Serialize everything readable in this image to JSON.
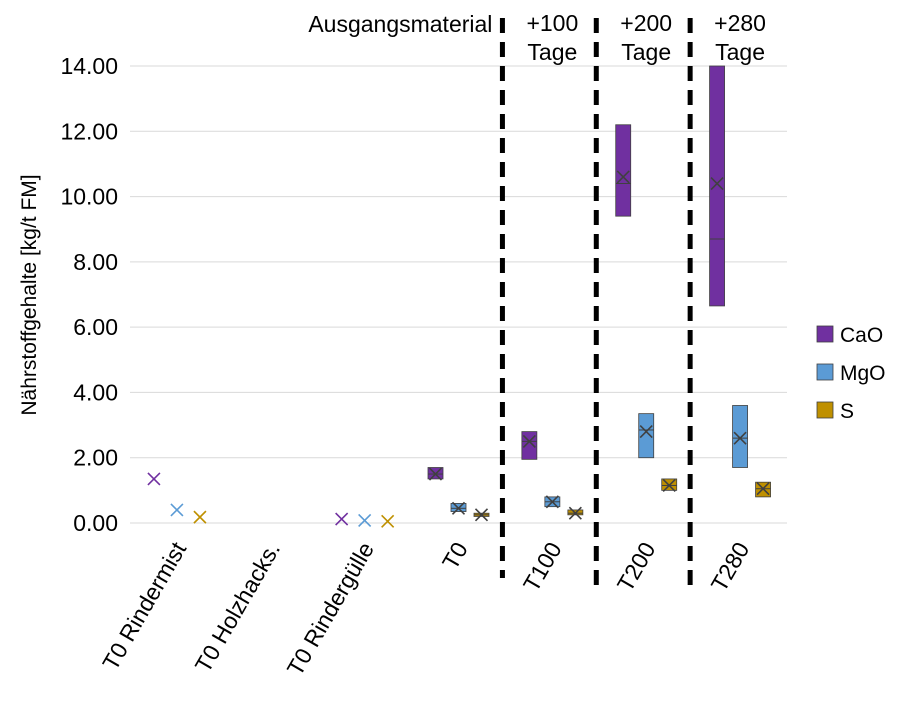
{
  "chart_data": {
    "type": "box",
    "ylabel": "Nährstoffgehalte [kg/t FM]",
    "ylim": [
      0,
      14
    ],
    "yticks": [
      "0.00",
      "2.00",
      "4.00",
      "6.00",
      "8.00",
      "10.00",
      "12.00",
      "14.00"
    ],
    "grid": true,
    "legend_position": "right",
    "categories": [
      "T0 Rindermist",
      "T0 Holzhacks.",
      "T0 Rindergülle",
      "T0",
      "T100",
      "T200",
      "T280"
    ],
    "annotations": [
      {
        "text": "Ausgangsmaterial",
        "category": "T0"
      },
      {
        "text": "+100",
        "text2": "Tage",
        "category": "T100"
      },
      {
        "text": "+200",
        "text2": "Tage",
        "category": "T200"
      },
      {
        "text": "+280",
        "text2": "Tage",
        "category": "T280"
      }
    ],
    "series": [
      {
        "name": "CaO",
        "color": "#7030A0",
        "boxes": [
          {
            "category": "T0 Rindermist",
            "min": 1.35,
            "q1": 1.35,
            "median": 1.35,
            "q3": 1.35,
            "max": 1.35,
            "mean": 1.35
          },
          {
            "category": "T0 Holzhacks.",
            "min": null,
            "q1": null,
            "median": null,
            "q3": null,
            "max": null,
            "mean": null
          },
          {
            "category": "T0 Rindergülle",
            "min": 0.12,
            "q1": 0.12,
            "median": 0.12,
            "q3": 0.12,
            "max": 0.12,
            "mean": 0.12
          },
          {
            "category": "T0",
            "min": 1.35,
            "q1": 1.35,
            "median": 1.5,
            "q3": 1.7,
            "max": 1.7,
            "mean": 1.5
          },
          {
            "category": "T100",
            "min": 1.95,
            "q1": 1.95,
            "median": 2.5,
            "q3": 2.8,
            "max": 2.8,
            "mean": 2.5
          },
          {
            "category": "T200",
            "min": 9.4,
            "q1": 9.4,
            "median": 10.4,
            "q3": 12.2,
            "max": 12.2,
            "mean": 10.6
          },
          {
            "category": "T280",
            "min": 6.65,
            "q1": 6.65,
            "median": 8.7,
            "q3": 14.0,
            "max": 14.0,
            "mean": 10.4
          }
        ]
      },
      {
        "name": "MgO",
        "color": "#5B9BD5",
        "boxes": [
          {
            "category": "T0 Rindermist",
            "min": 0.4,
            "q1": 0.4,
            "median": 0.4,
            "q3": 0.4,
            "max": 0.4,
            "mean": 0.4
          },
          {
            "category": "T0 Holzhacks.",
            "min": null,
            "q1": null,
            "median": null,
            "q3": null,
            "max": null,
            "mean": null
          },
          {
            "category": "T0 Rindergülle",
            "min": 0.08,
            "q1": 0.08,
            "median": 0.08,
            "q3": 0.08,
            "max": 0.08,
            "mean": 0.08
          },
          {
            "category": "T0",
            "min": 0.35,
            "q1": 0.35,
            "median": 0.45,
            "q3": 0.6,
            "max": 0.6,
            "mean": 0.45
          },
          {
            "category": "T100",
            "min": 0.5,
            "q1": 0.5,
            "median": 0.65,
            "q3": 0.8,
            "max": 0.8,
            "mean": 0.65
          },
          {
            "category": "T200",
            "min": 2.0,
            "q1": 2.0,
            "median": 2.85,
            "q3": 3.35,
            "max": 3.35,
            "mean": 2.8
          },
          {
            "category": "T280",
            "min": 1.7,
            "q1": 1.7,
            "median": 2.6,
            "q3": 3.6,
            "max": 3.6,
            "mean": 2.6
          }
        ]
      },
      {
        "name": "S",
        "color": "#BF9000",
        "boxes": [
          {
            "category": "T0 Rindermist",
            "min": 0.18,
            "q1": 0.18,
            "median": 0.18,
            "q3": 0.18,
            "max": 0.18,
            "mean": 0.18
          },
          {
            "category": "T0 Holzhacks.",
            "min": null,
            "q1": null,
            "median": null,
            "q3": null,
            "max": null,
            "mean": null
          },
          {
            "category": "T0 Rindergülle",
            "min": 0.05,
            "q1": 0.05,
            "median": 0.05,
            "q3": 0.05,
            "max": 0.05,
            "mean": 0.05
          },
          {
            "category": "T0",
            "min": 0.2,
            "q1": 0.2,
            "median": 0.25,
            "q3": 0.3,
            "max": 0.3,
            "mean": 0.25
          },
          {
            "category": "T100",
            "min": 0.25,
            "q1": 0.25,
            "median": 0.3,
            "q3": 0.4,
            "max": 0.4,
            "mean": 0.3
          },
          {
            "category": "T200",
            "min": 1.0,
            "q1": 1.0,
            "median": 1.15,
            "q3": 1.35,
            "max": 1.35,
            "mean": 1.15
          },
          {
            "category": "T280",
            "min": 0.8,
            "q1": 0.8,
            "median": 1.05,
            "q3": 1.25,
            "max": 1.25,
            "mean": 1.05
          }
        ]
      }
    ]
  }
}
